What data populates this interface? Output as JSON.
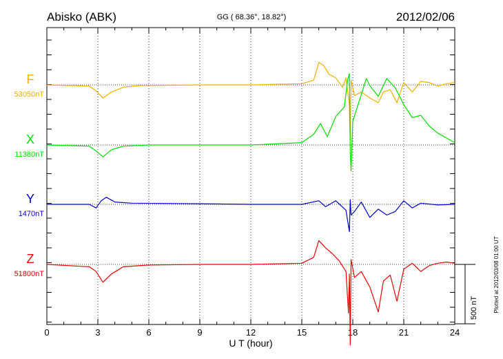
{
  "header": {
    "station": "Abisko (ABK)",
    "coords": "GG ( 68.36°,  18.82°)",
    "date": "2012/02/06"
  },
  "footer_note": "Plotted at 2012/03/08 01:00 UT",
  "scale_label": "500 nT",
  "chart_data": {
    "type": "line",
    "xlabel": "U T (hour)",
    "xlim": [
      0,
      24
    ],
    "xticks": [
      "0",
      "3",
      "6",
      "9",
      "12",
      "15",
      "18",
      "21",
      "24"
    ],
    "grid": true,
    "scale_bar_nT": 500,
    "series": [
      {
        "name": "F",
        "baseline": "53050nT",
        "color": "#f0b000",
        "x": [
          0,
          2.5,
          2.9,
          3.3,
          3.8,
          4.5,
          5.5,
          9,
          12,
          15,
          15.7,
          16.0,
          16.3,
          16.6,
          17.0,
          17.4,
          17.6,
          17.8,
          17.85,
          17.9,
          18.1,
          18.5,
          19.0,
          19.5,
          19.8,
          20.2,
          20.6,
          21.0,
          21.5,
          22.0,
          22.5,
          23.0,
          23.5,
          24
        ],
        "y": [
          0,
          -10,
          -50,
          -110,
          -60,
          -20,
          -5,
          0,
          0,
          10,
          40,
          190,
          160,
          90,
          60,
          -20,
          60,
          -170,
          -460,
          40,
          -90,
          -60,
          -110,
          -150,
          -60,
          -40,
          -150,
          20,
          -60,
          30,
          20,
          -10,
          10,
          20
        ]
      },
      {
        "name": "X",
        "baseline": "11380nT",
        "color": "#00dd00",
        "x": [
          0,
          2.5,
          2.9,
          3.3,
          3.8,
          4.5,
          6,
          9,
          12,
          15,
          15.7,
          16.1,
          16.5,
          17.0,
          17.5,
          17.7,
          17.8,
          17.85,
          17.9,
          18.0,
          18.4,
          18.8,
          19.0,
          19.5,
          20.0,
          20.5,
          21.0,
          21.5,
          22.0,
          22.5,
          23.0,
          24
        ],
        "y": [
          0,
          -10,
          -50,
          -100,
          -40,
          -10,
          0,
          0,
          0,
          20,
          90,
          180,
          70,
          240,
          320,
          550,
          600,
          -60,
          -220,
          200,
          380,
          560,
          500,
          410,
          560,
          480,
          340,
          230,
          250,
          160,
          100,
          20
        ]
      },
      {
        "name": "Y",
        "baseline": "1470nT",
        "color": "#0000cc",
        "x": [
          0,
          2.5,
          2.9,
          3.2,
          3.5,
          4,
          5,
          9,
          12,
          15,
          16.0,
          16.4,
          17.0,
          17.6,
          17.8,
          17.85,
          17.9,
          18.1,
          18.5,
          19.0,
          19.5,
          20.0,
          20.5,
          21.0,
          21.5,
          22,
          23,
          24
        ],
        "y": [
          0,
          0,
          -30,
          30,
          60,
          20,
          10,
          5,
          0,
          0,
          30,
          -20,
          30,
          -50,
          -230,
          40,
          -90,
          -60,
          20,
          -110,
          -40,
          -90,
          -60,
          30,
          -30,
          10,
          -5,
          0
        ]
      },
      {
        "name": "Z",
        "baseline": "51800nT",
        "color": "#ee0000",
        "x": [
          0,
          2.5,
          2.9,
          3.3,
          3.8,
          4.5,
          6,
          9,
          12,
          15,
          15.7,
          16.0,
          16.4,
          16.8,
          17.2,
          17.6,
          17.75,
          17.8,
          17.85,
          17.9,
          18.1,
          18.5,
          19.0,
          19.5,
          19.8,
          20.2,
          20.6,
          21.0,
          21.5,
          22.0,
          22.5,
          23.0,
          23.5,
          24
        ],
        "y": [
          0,
          -20,
          -60,
          -150,
          -80,
          -20,
          -5,
          0,
          0,
          10,
          60,
          200,
          140,
          90,
          30,
          -60,
          -410,
          -80,
          -680,
          40,
          -110,
          -60,
          -190,
          -400,
          -140,
          -90,
          -310,
          -40,
          10,
          -60,
          -10,
          10,
          20,
          10
        ]
      }
    ]
  }
}
